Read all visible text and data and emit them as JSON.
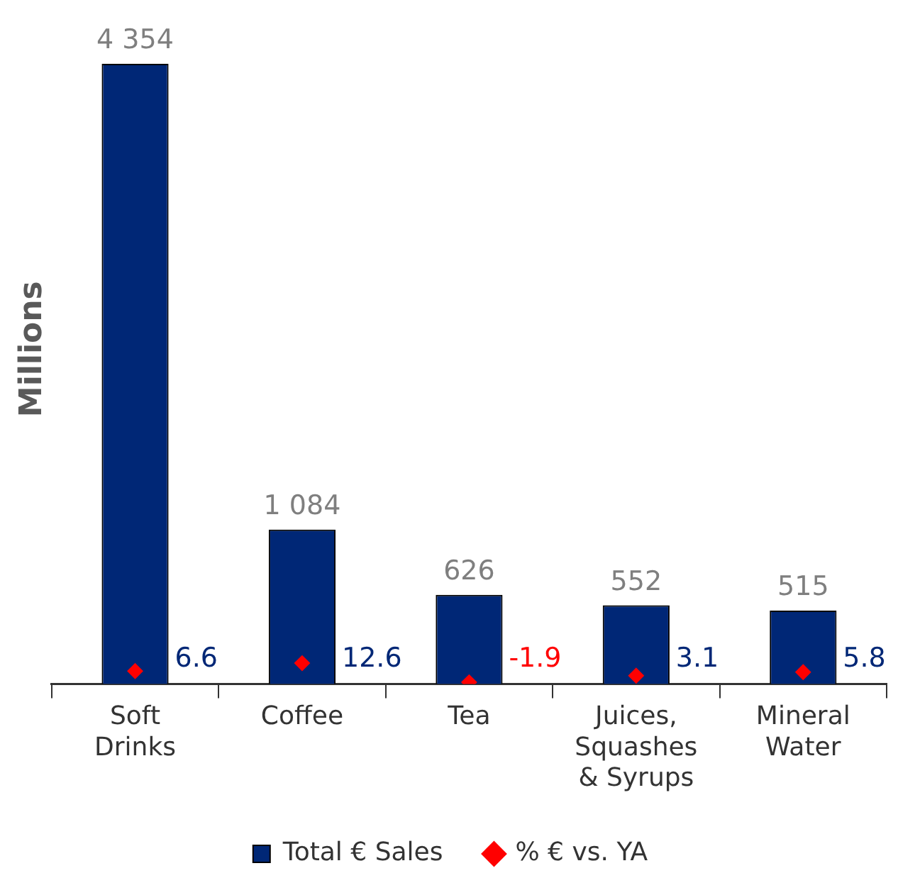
{
  "chart_data": {
    "type": "bar",
    "ylabel": "Millions",
    "categories": [
      "Soft Drinks",
      "Coffee",
      "Tea",
      "Juices, Squashes & Syrups",
      "Mineral Water"
    ],
    "series": [
      {
        "name": "Total € Sales",
        "color": "#002776",
        "values": [
          4354,
          1084,
          626,
          552,
          515
        ],
        "value_labels": [
          "4 354",
          "1 084",
          "626",
          "552",
          "515"
        ]
      },
      {
        "name": "% € vs. YA",
        "type": "scatter",
        "axis": "y2",
        "marker": "diamond",
        "color": "#ff0000",
        "values": [
          6.6,
          12.6,
          -1.9,
          3.1,
          5.8
        ],
        "value_labels": [
          "6.6",
          "12.6",
          "-1.9",
          "3.1",
          "5.8"
        ]
      }
    ],
    "tick_labels": "x",
    "grid": false,
    "legend": "bottom"
  }
}
